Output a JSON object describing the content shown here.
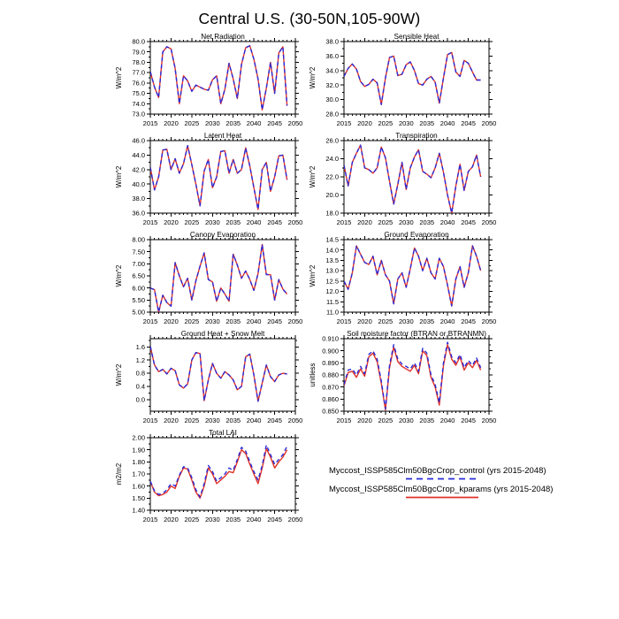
{
  "title": "Central U.S. (30-50N,105-90W)",
  "colors": {
    "control_line": "#2a2ad8",
    "kparams_line": "#e03228"
  },
  "legend": {
    "position": "bottom-right",
    "entries": [
      {
        "label": "Myccost_ISSP585Clm50BgcCrop_control (yrs 2015-2048)",
        "style": "dashed",
        "color": "#2a2ad8"
      },
      {
        "label": "Myccost_ISSP585Clm50BgcCrop_kparams (yrs 2015-2048)",
        "style": "solid",
        "color": "#e03228"
      }
    ]
  },
  "chart_data": [
    {
      "type": "line",
      "title": "Net Radiation",
      "ylabel": "W/m^2",
      "xlabel": "",
      "grid": false,
      "xlim": [
        2015,
        2050
      ],
      "xticks": [
        2015,
        2020,
        2025,
        2030,
        2035,
        2040,
        2045,
        2050
      ],
      "ylim": [
        73.0,
        80.0
      ],
      "yticks": [
        73.0,
        74.0,
        75.0,
        76.0,
        77.0,
        78.0,
        79.0,
        80.0
      ],
      "decimals": 1,
      "x_years": {
        "start": 2015,
        "end": 2048,
        "step": 1
      },
      "series": [
        {
          "name": "control",
          "color": "#2a2ad8",
          "dash": true,
          "values": [
            77.1,
            75.6,
            74.6,
            79.0,
            79.5,
            79.3,
            77.4,
            74.0,
            76.7,
            76.2,
            75.2,
            75.8,
            75.6,
            75.4,
            75.3,
            76.3,
            76.7,
            74.0,
            75.4,
            77.9,
            76.4,
            74.5,
            77.8,
            79.4,
            79.6,
            78.3,
            76.4,
            73.4,
            75.5,
            78.0,
            75.0,
            78.9,
            79.5,
            73.8
          ]
        },
        {
          "name": "kparams",
          "color": "#e03228",
          "dash": false,
          "values": [
            77.1,
            75.6,
            74.6,
            79.0,
            79.5,
            79.3,
            77.4,
            74.0,
            76.7,
            76.2,
            75.2,
            75.8,
            75.6,
            75.4,
            75.3,
            76.3,
            76.7,
            74.0,
            75.4,
            77.9,
            76.4,
            74.5,
            77.8,
            79.4,
            79.6,
            78.3,
            76.4,
            73.4,
            75.5,
            78.0,
            75.0,
            78.9,
            79.5,
            73.8
          ]
        }
      ]
    },
    {
      "type": "line",
      "title": "Sensible Heat",
      "ylabel": "W/m^2",
      "xlabel": "",
      "grid": false,
      "xlim": [
        2015,
        2050
      ],
      "xticks": [
        2015,
        2020,
        2025,
        2030,
        2035,
        2040,
        2045,
        2050
      ],
      "ylim": [
        28.0,
        38.0
      ],
      "yticks": [
        28.0,
        30.0,
        32.0,
        34.0,
        36.0,
        38.0
      ],
      "decimals": 1,
      "x_years": {
        "start": 2015,
        "end": 2048,
        "step": 1
      },
      "series": [
        {
          "name": "control",
          "color": "#2a2ad8",
          "dash": true,
          "values": [
            33.2,
            34.3,
            34.9,
            34.2,
            32.5,
            31.8,
            32.1,
            32.8,
            32.3,
            29.3,
            33.0,
            35.8,
            36.0,
            33.3,
            33.5,
            34.8,
            35.2,
            34.0,
            32.2,
            32.0,
            32.8,
            33.2,
            32.4,
            29.5,
            33.0,
            36.2,
            36.5,
            33.8,
            33.2,
            35.4,
            35.0,
            33.8,
            32.7,
            32.7
          ]
        },
        {
          "name": "kparams",
          "color": "#e03228",
          "dash": false,
          "values": [
            33.2,
            34.3,
            34.9,
            34.2,
            32.5,
            31.8,
            32.1,
            32.8,
            32.3,
            29.3,
            33.0,
            35.8,
            36.0,
            33.3,
            33.5,
            34.8,
            35.2,
            34.0,
            32.2,
            32.0,
            32.8,
            33.2,
            32.4,
            29.5,
            33.0,
            36.2,
            36.5,
            33.8,
            33.2,
            35.4,
            35.0,
            33.8,
            32.7,
            32.7
          ]
        }
      ]
    },
    {
      "type": "line",
      "title": "Latent Heat",
      "ylabel": "W/m^2",
      "xlabel": "",
      "grid": false,
      "xlim": [
        2015,
        2050
      ],
      "xticks": [
        2015,
        2020,
        2025,
        2030,
        2035,
        2040,
        2045,
        2050
      ],
      "ylim": [
        36.0,
        46.0
      ],
      "yticks": [
        36.0,
        38.0,
        40.0,
        42.0,
        44.0,
        46.0
      ],
      "decimals": 1,
      "x_years": {
        "start": 2015,
        "end": 2048,
        "step": 1
      },
      "series": [
        {
          "name": "control",
          "color": "#2a2ad8",
          "dash": true,
          "values": [
            42.3,
            39.2,
            41.0,
            44.7,
            44.8,
            42.0,
            43.5,
            41.5,
            42.8,
            45.3,
            42.7,
            40.0,
            37.0,
            41.8,
            43.4,
            39.5,
            41.0,
            44.5,
            44.6,
            41.5,
            43.4,
            41.5,
            42.0,
            45.0,
            42.5,
            39.5,
            36.5,
            42.0,
            43.0,
            39.0,
            41.0,
            43.9,
            44.0,
            40.6
          ]
        },
        {
          "name": "kparams",
          "color": "#e03228",
          "dash": false,
          "values": [
            42.3,
            39.2,
            41.0,
            44.7,
            44.8,
            42.0,
            43.5,
            41.5,
            42.8,
            45.3,
            42.7,
            40.0,
            37.0,
            41.8,
            43.4,
            39.5,
            41.0,
            44.5,
            44.6,
            41.5,
            43.4,
            41.5,
            42.0,
            45.0,
            42.5,
            39.5,
            36.5,
            42.0,
            43.0,
            39.0,
            41.0,
            43.9,
            44.0,
            40.6
          ]
        }
      ]
    },
    {
      "type": "line",
      "title": "Transpiration",
      "ylabel": "W/m^2",
      "xlabel": "",
      "grid": false,
      "xlim": [
        2015,
        2050
      ],
      "xticks": [
        2015,
        2020,
        2025,
        2030,
        2035,
        2040,
        2045,
        2050
      ],
      "ylim": [
        18.0,
        26.0
      ],
      "yticks": [
        18.0,
        20.0,
        22.0,
        24.0,
        26.0
      ],
      "decimals": 1,
      "x_years": {
        "start": 2015,
        "end": 2048,
        "step": 1
      },
      "series": [
        {
          "name": "control",
          "color": "#2a2ad8",
          "dash": true,
          "values": [
            23.3,
            21.0,
            23.6,
            24.6,
            25.5,
            23.0,
            22.8,
            22.4,
            23.0,
            25.3,
            24.1,
            21.5,
            19.0,
            21.2,
            23.6,
            20.6,
            23.0,
            24.2,
            25.0,
            22.6,
            22.3,
            21.9,
            23.0,
            24.6,
            22.5,
            20.0,
            18.0,
            21.0,
            23.4,
            20.5,
            22.6,
            23.1,
            24.4,
            22.0
          ]
        },
        {
          "name": "kparams",
          "color": "#e03228",
          "dash": false,
          "values": [
            23.3,
            21.0,
            23.6,
            24.6,
            25.5,
            23.0,
            22.8,
            22.4,
            23.0,
            25.3,
            24.1,
            21.5,
            19.0,
            21.2,
            23.6,
            20.6,
            23.0,
            24.2,
            25.0,
            22.6,
            22.3,
            21.9,
            23.0,
            24.6,
            22.5,
            20.0,
            18.0,
            21.0,
            23.4,
            20.5,
            22.6,
            23.1,
            24.4,
            22.0
          ]
        }
      ]
    },
    {
      "type": "line",
      "title": "Canopy Evaporation",
      "ylabel": "W/m^2",
      "xlabel": "",
      "grid": false,
      "xlim": [
        2015,
        2050
      ],
      "xticks": [
        2015,
        2020,
        2025,
        2030,
        2035,
        2040,
        2045,
        2050
      ],
      "ylim": [
        5.0,
        8.0
      ],
      "yticks": [
        5.0,
        5.5,
        6.0,
        6.5,
        7.0,
        7.5,
        8.0
      ],
      "decimals": 2,
      "x_years": {
        "start": 2015,
        "end": 2048,
        "step": 1
      },
      "series": [
        {
          "name": "control",
          "color": "#2a2ad8",
          "dash": true,
          "values": [
            6.0,
            5.93,
            5.0,
            5.7,
            5.4,
            5.25,
            7.05,
            6.5,
            6.05,
            6.4,
            5.5,
            6.3,
            6.9,
            7.45,
            6.35,
            6.25,
            5.45,
            6.0,
            5.75,
            5.45,
            7.4,
            6.95,
            6.4,
            6.7,
            6.35,
            5.9,
            6.6,
            7.8,
            6.55,
            6.55,
            5.5,
            6.35,
            5.95,
            5.75
          ]
        },
        {
          "name": "kparams",
          "color": "#e03228",
          "dash": false,
          "values": [
            6.0,
            5.93,
            5.0,
            5.7,
            5.4,
            5.25,
            7.05,
            6.5,
            6.05,
            6.4,
            5.5,
            6.3,
            6.9,
            7.45,
            6.35,
            6.25,
            5.45,
            6.0,
            5.75,
            5.45,
            7.4,
            6.95,
            6.4,
            6.7,
            6.35,
            5.9,
            6.6,
            7.8,
            6.55,
            6.55,
            5.5,
            6.35,
            5.95,
            5.75
          ]
        }
      ]
    },
    {
      "type": "line",
      "title": "Ground Evaporation",
      "ylabel": "W/m^2",
      "xlabel": "",
      "grid": false,
      "xlim": [
        2015,
        2050
      ],
      "xticks": [
        2015,
        2020,
        2025,
        2030,
        2035,
        2040,
        2045,
        2050
      ],
      "ylim": [
        11.0,
        14.5
      ],
      "yticks": [
        11.0,
        11.5,
        12.0,
        12.5,
        13.0,
        13.5,
        14.0,
        14.5
      ],
      "decimals": 1,
      "x_years": {
        "start": 2015,
        "end": 2048,
        "step": 1
      },
      "series": [
        {
          "name": "control",
          "color": "#2a2ad8",
          "dash": true,
          "values": [
            12.5,
            12.1,
            12.9,
            14.2,
            13.8,
            13.4,
            13.3,
            13.7,
            12.8,
            13.5,
            12.8,
            12.5,
            11.4,
            12.6,
            12.9,
            12.2,
            13.1,
            14.1,
            13.7,
            13.0,
            13.6,
            12.9,
            12.6,
            13.6,
            13.2,
            12.3,
            11.3,
            12.6,
            13.2,
            12.2,
            12.9,
            14.2,
            13.7,
            13.0
          ]
        },
        {
          "name": "kparams",
          "color": "#e03228",
          "dash": false,
          "values": [
            12.5,
            12.1,
            12.9,
            14.2,
            13.8,
            13.4,
            13.3,
            13.7,
            12.8,
            13.5,
            12.8,
            12.5,
            11.4,
            12.6,
            12.9,
            12.2,
            13.1,
            14.1,
            13.7,
            13.0,
            13.6,
            12.9,
            12.6,
            13.6,
            13.2,
            12.3,
            11.3,
            12.6,
            13.2,
            12.2,
            12.9,
            14.2,
            13.7,
            13.0
          ]
        }
      ]
    },
    {
      "type": "line",
      "title": "Ground Heat + Snow Melt",
      "ylabel": "W/m^2",
      "xlabel": "",
      "grid": false,
      "xlim": [
        2015,
        2050
      ],
      "xticks": [
        2015,
        2020,
        2025,
        2030,
        2035,
        2040,
        2045,
        2050
      ],
      "ylim": [
        -0.35,
        1.85
      ],
      "yticks": [
        0.0,
        0.4,
        0.8,
        1.2,
        1.6
      ],
      "decimals": 1,
      "x_years": {
        "start": 2015,
        "end": 2048,
        "step": 1
      },
      "series": [
        {
          "name": "control",
          "color": "#2a2ad8",
          "dash": true,
          "values": [
            1.62,
            1.05,
            0.85,
            0.92,
            0.78,
            0.95,
            0.88,
            0.45,
            0.35,
            0.48,
            1.2,
            1.43,
            1.4,
            -0.03,
            0.6,
            1.1,
            0.8,
            0.65,
            0.85,
            0.75,
            0.6,
            0.3,
            0.4,
            1.3,
            1.38,
            0.75,
            -0.05,
            0.5,
            1.05,
            0.7,
            0.55,
            0.75,
            0.8,
            0.78
          ]
        },
        {
          "name": "kparams",
          "color": "#e03228",
          "dash": false,
          "values": [
            1.62,
            1.05,
            0.85,
            0.92,
            0.78,
            0.95,
            0.88,
            0.45,
            0.35,
            0.48,
            1.2,
            1.43,
            1.4,
            -0.03,
            0.6,
            1.1,
            0.8,
            0.65,
            0.85,
            0.75,
            0.6,
            0.3,
            0.4,
            1.3,
            1.38,
            0.75,
            -0.05,
            0.5,
            1.05,
            0.7,
            0.55,
            0.75,
            0.8,
            0.78
          ]
        }
      ]
    },
    {
      "type": "line",
      "title": "Soil moisture factor (BTRAN or BTRANMN)",
      "ylabel": "unitless",
      "xlabel": "",
      "grid": false,
      "xlim": [
        2015,
        2050
      ],
      "xticks": [
        2015,
        2020,
        2025,
        2030,
        2035,
        2040,
        2045,
        2050
      ],
      "ylim": [
        0.85,
        0.91
      ],
      "yticks": [
        0.85,
        0.86,
        0.87,
        0.88,
        0.89,
        0.9,
        0.91
      ],
      "decimals": 3,
      "x_years": {
        "start": 2015,
        "end": 2048,
        "step": 1
      },
      "series": [
        {
          "name": "control",
          "color": "#2a2ad8",
          "dash": true,
          "values": [
            0.872,
            0.884,
            0.885,
            0.88,
            0.887,
            0.881,
            0.897,
            0.9,
            0.893,
            0.875,
            0.852,
            0.888,
            0.905,
            0.893,
            0.889,
            0.887,
            0.885,
            0.89,
            0.883,
            0.902,
            0.898,
            0.88,
            0.872,
            0.857,
            0.89,
            0.907,
            0.895,
            0.89,
            0.897,
            0.886,
            0.892,
            0.888,
            0.894,
            0.886
          ]
        },
        {
          "name": "kparams",
          "color": "#e03228",
          "dash": false,
          "values": [
            0.871,
            0.882,
            0.883,
            0.878,
            0.885,
            0.879,
            0.895,
            0.898,
            0.891,
            0.873,
            0.851,
            0.886,
            0.903,
            0.891,
            0.887,
            0.885,
            0.883,
            0.888,
            0.881,
            0.9,
            0.896,
            0.878,
            0.87,
            0.855,
            0.888,
            0.905,
            0.893,
            0.888,
            0.895,
            0.884,
            0.89,
            0.886,
            0.892,
            0.884
          ]
        }
      ]
    },
    {
      "type": "line",
      "title": "Total LAI",
      "ylabel": "m2/m2",
      "xlabel": "",
      "grid": false,
      "xlim": [
        2015,
        2050
      ],
      "xticks": [
        2015,
        2020,
        2025,
        2030,
        2035,
        2040,
        2045,
        2050
      ],
      "ylim": [
        1.4,
        2.0
      ],
      "yticks": [
        1.4,
        1.5,
        1.6,
        1.7,
        1.8,
        1.9,
        2.0
      ],
      "decimals": 2,
      "x_years": {
        "start": 2015,
        "end": 2048,
        "step": 1
      },
      "series": [
        {
          "name": "control",
          "color": "#2a2ad8",
          "dash": true,
          "values": [
            1.64,
            1.56,
            1.53,
            1.54,
            1.57,
            1.62,
            1.6,
            1.69,
            1.76,
            1.75,
            1.67,
            1.57,
            1.51,
            1.62,
            1.77,
            1.72,
            1.64,
            1.67,
            1.7,
            1.75,
            1.73,
            1.82,
            1.92,
            1.89,
            1.8,
            1.72,
            1.65,
            1.77,
            1.94,
            1.86,
            1.78,
            1.82,
            1.86,
            1.93
          ]
        },
        {
          "name": "kparams",
          "color": "#e03228",
          "dash": false,
          "values": [
            1.64,
            1.55,
            1.52,
            1.53,
            1.55,
            1.6,
            1.58,
            1.68,
            1.75,
            1.74,
            1.65,
            1.55,
            1.5,
            1.6,
            1.75,
            1.7,
            1.62,
            1.65,
            1.68,
            1.72,
            1.71,
            1.8,
            1.9,
            1.87,
            1.78,
            1.7,
            1.62,
            1.75,
            1.91,
            1.84,
            1.75,
            1.8,
            1.84,
            1.9
          ]
        }
      ]
    }
  ]
}
